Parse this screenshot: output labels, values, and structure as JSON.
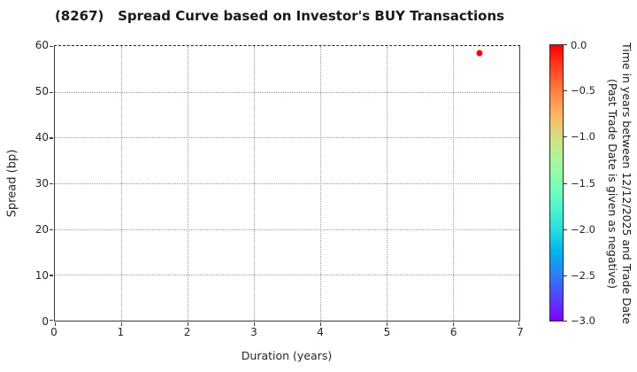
{
  "chart_data": {
    "type": "scatter",
    "title": "(8267)   Spread Curve based on Investor's BUY Transactions",
    "xlabel": "Duration (years)",
    "ylabel": "Spread (bp)",
    "xlim": [
      0,
      7
    ],
    "ylim": [
      0,
      60
    ],
    "xtick_labels": [
      "0",
      "1",
      "2",
      "3",
      "4",
      "5",
      "6",
      "7"
    ],
    "ytick_labels": [
      "0",
      "10",
      "20",
      "30",
      "40",
      "50",
      "60"
    ],
    "grid": true,
    "grid_style": "dotted",
    "legend": "none",
    "points": [
      {
        "x": 6.4,
        "y": 58.5,
        "color_value": 0.0,
        "color": "#ff0000"
      }
    ],
    "colorbar": {
      "colormap": "rainbow",
      "vmax": 0.0,
      "vmin": -3.0,
      "tick_labels": [
        "0.0",
        "−0.5",
        "−1.0",
        "−1.5",
        "−2.0",
        "−2.5",
        "−3.0"
      ],
      "label_line1": "Time in years between 12/12/2025 and Trade Date",
      "label_line2": "(Past Trade Date is given as negative)",
      "gradient_stops_top_to_bottom": [
        "#ff0000",
        "#ff4221",
        "#ff8042",
        "#ffb462",
        "#d5dd80",
        "#aaf69b",
        "#80ffb4",
        "#55f6ca",
        "#2bdddd",
        "#00b4ec",
        "#2b80f6",
        "#5542fd",
        "#8000ff"
      ]
    }
  },
  "colors": {
    "background": "#ffffff",
    "point": "#ff0000",
    "grid": "#9a9a9a",
    "axis": "#3c3c3c",
    "text": "#262626"
  }
}
